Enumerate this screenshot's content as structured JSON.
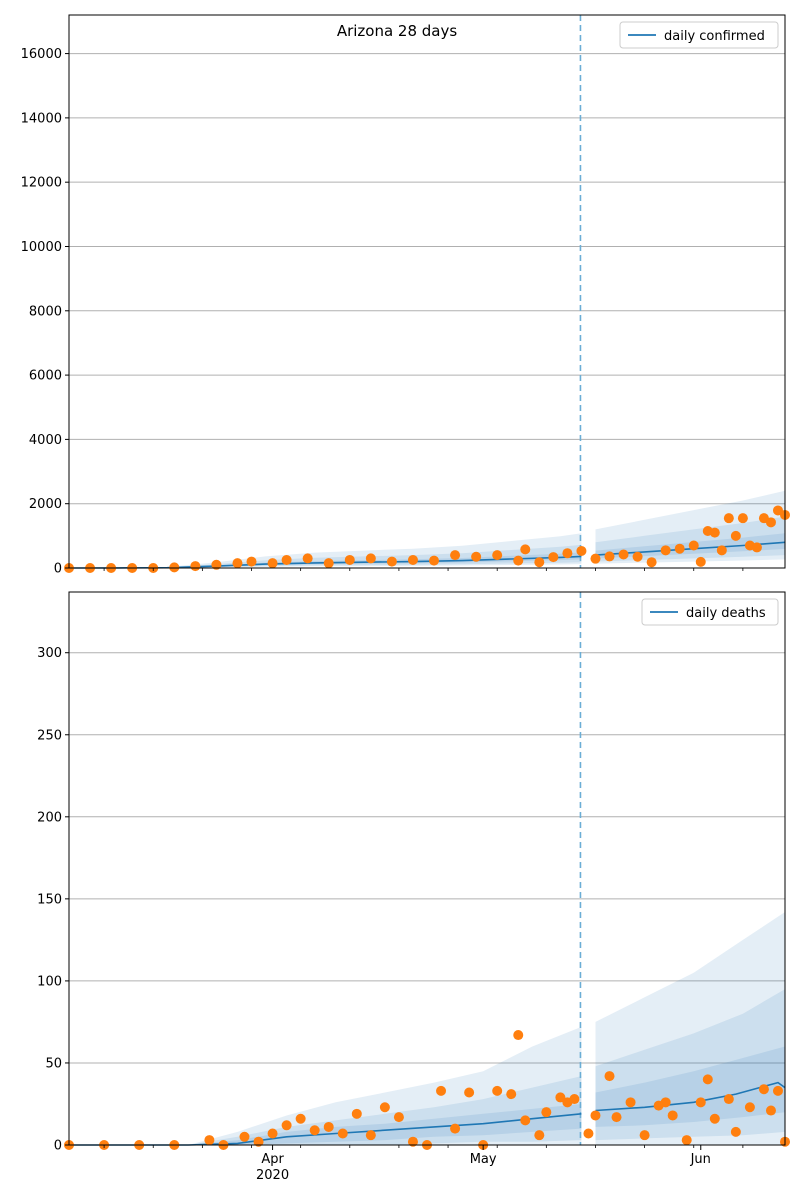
{
  "figure": {
    "title": "Arizona 28 days"
  },
  "colors": {
    "model_line": "#1f77b4",
    "observed_points": "#ff7f0e",
    "band": "#1f77b4",
    "forecast_divider": "#6baed6",
    "grid": "#b0b0b0"
  },
  "chart_data": [
    {
      "type": "line",
      "name": "cases",
      "title": "Arizona 28 days",
      "legend": {
        "label": "daily confirmed",
        "position": "top-right"
      },
      "x_type": "date",
      "xlim": [
        "2020-03-03",
        "2020-06-13"
      ],
      "forecast_start": "2020-05-16",
      "ylim": [
        0,
        17200
      ],
      "yticks": [
        0,
        2000,
        4000,
        6000,
        8000,
        10000,
        12000,
        14000,
        16000
      ],
      "ytick_labels": [
        "0",
        "2000",
        "4000",
        "6000",
        "8000",
        "10000",
        "12000",
        "14000",
        "16000"
      ],
      "grid": true,
      "band_scale": [
        1.35,
        2.0,
        3.0
      ],
      "model": {
        "x": [
          "2020-03-03",
          "2020-03-10",
          "2020-03-17",
          "2020-03-24",
          "2020-03-31",
          "2020-04-07",
          "2020-04-14",
          "2020-04-21",
          "2020-04-28",
          "2020-05-05",
          "2020-05-12",
          "2020-05-15",
          "2020-05-17",
          "2020-05-24",
          "2020-05-31",
          "2020-06-07",
          "2020-06-13"
        ],
        "y": [
          0,
          2,
          10,
          60,
          120,
          160,
          180,
          200,
          230,
          280,
          330,
          360,
          400,
          500,
          600,
          700,
          800
        ]
      },
      "observed": {
        "x": [
          "2020-03-03",
          "2020-03-06",
          "2020-03-09",
          "2020-03-12",
          "2020-03-15",
          "2020-03-18",
          "2020-03-21",
          "2020-03-24",
          "2020-03-27",
          "2020-03-29",
          "2020-04-01",
          "2020-04-03",
          "2020-04-06",
          "2020-04-09",
          "2020-04-12",
          "2020-04-15",
          "2020-04-18",
          "2020-04-21",
          "2020-04-24",
          "2020-04-27",
          "2020-04-30",
          "2020-05-03",
          "2020-05-06",
          "2020-05-07",
          "2020-05-09",
          "2020-05-11",
          "2020-05-13",
          "2020-05-15",
          "2020-05-17",
          "2020-05-19",
          "2020-05-21",
          "2020-05-23",
          "2020-05-25",
          "2020-05-27",
          "2020-05-29",
          "2020-05-31",
          "2020-06-01",
          "2020-06-02",
          "2020-06-03",
          "2020-06-04",
          "2020-06-05",
          "2020-06-06",
          "2020-06-07",
          "2020-06-08",
          "2020-06-09",
          "2020-06-10",
          "2020-06-11",
          "2020-06-12",
          "2020-06-13"
        ],
        "y": [
          0,
          0,
          0,
          0,
          0,
          20,
          60,
          100,
          150,
          200,
          150,
          250,
          300,
          150,
          250,
          300,
          200,
          250,
          230,
          400,
          350,
          400,
          230,
          580,
          180,
          340,
          460,
          530,
          290,
          360,
          420,
          350,
          180,
          550,
          600,
          700,
          190,
          1150,
          1100,
          550,
          1550,
          1000,
          1550,
          700,
          640,
          1550,
          1420,
          1790,
          1650
        ]
      }
    },
    {
      "type": "line",
      "name": "deaths",
      "legend": {
        "label": "daily deaths",
        "position": "top-right"
      },
      "x_type": "date",
      "xlim": [
        "2020-03-03",
        "2020-06-13"
      ],
      "forecast_start": "2020-05-16",
      "ylim": [
        0,
        337
      ],
      "yticks": [
        0,
        50,
        100,
        150,
        200,
        250,
        300
      ],
      "ytick_labels": [
        "0",
        "50",
        "100",
        "150",
        "200",
        "250",
        "300"
      ],
      "xticks": [
        "2020-04-01",
        "2020-05-01",
        "2020-06-01"
      ],
      "xtick_labels": [
        "Apr",
        "May",
        "Jun"
      ],
      "xtick_sublabel": "2020",
      "grid": true,
      "model": {
        "x": [
          "2020-03-03",
          "2020-03-20",
          "2020-03-27",
          "2020-04-03",
          "2020-04-10",
          "2020-04-17",
          "2020-04-24",
          "2020-05-01",
          "2020-05-08",
          "2020-05-15",
          "2020-05-17",
          "2020-05-24",
          "2020-05-31",
          "2020-06-06",
          "2020-06-12",
          "2020-06-13"
        ],
        "y": [
          0,
          0,
          1,
          5,
          7,
          9,
          11,
          13,
          16,
          19,
          21,
          23,
          26,
          31,
          38,
          35
        ]
      },
      "bands": [
        {
          "x": [
            "2020-03-20",
            "2020-03-27",
            "2020-04-03",
            "2020-04-10",
            "2020-04-17",
            "2020-04-24",
            "2020-05-01",
            "2020-05-08",
            "2020-05-15",
            "2020-05-17",
            "2020-05-24",
            "2020-05-31",
            "2020-06-07",
            "2020-06-13"
          ],
          "lower": [
            0,
            0,
            0,
            0,
            0,
            0,
            0,
            0,
            0,
            0,
            0,
            0,
            0,
            0
          ],
          "upper": [
            0,
            8,
            18,
            26,
            32,
            38,
            45,
            60,
            72,
            75,
            90,
            105,
            125,
            142
          ]
        },
        {
          "x": [
            "2020-03-20",
            "2020-03-27",
            "2020-04-03",
            "2020-04-10",
            "2020-04-17",
            "2020-04-24",
            "2020-05-01",
            "2020-05-08",
            "2020-05-15",
            "2020-05-17",
            "2020-05-24",
            "2020-05-31",
            "2020-06-07",
            "2020-06-13"
          ],
          "lower": [
            0,
            0,
            0,
            0,
            0,
            1,
            2,
            2,
            3,
            3,
            4,
            5,
            6,
            8
          ],
          "upper": [
            0,
            5,
            11,
            15,
            19,
            23,
            28,
            35,
            42,
            48,
            58,
            68,
            80,
            95
          ]
        },
        {
          "x": [
            "2020-03-20",
            "2020-03-27",
            "2020-04-03",
            "2020-04-10",
            "2020-04-17",
            "2020-04-24",
            "2020-05-01",
            "2020-05-08",
            "2020-05-15",
            "2020-05-17",
            "2020-05-24",
            "2020-05-31",
            "2020-06-07",
            "2020-06-13"
          ],
          "lower": [
            0,
            0,
            1,
            2,
            3,
            5,
            6,
            8,
            10,
            11,
            12,
            14,
            17,
            20
          ],
          "upper": [
            0,
            3,
            8,
            11,
            13,
            16,
            19,
            22,
            25,
            32,
            38,
            45,
            53,
            60
          ]
        }
      ],
      "observed": {
        "x": [
          "2020-03-03",
          "2020-03-08",
          "2020-03-13",
          "2020-03-18",
          "2020-03-23",
          "2020-03-25",
          "2020-03-28",
          "2020-03-30",
          "2020-04-01",
          "2020-04-03",
          "2020-04-05",
          "2020-04-07",
          "2020-04-09",
          "2020-04-11",
          "2020-04-13",
          "2020-04-15",
          "2020-04-17",
          "2020-04-19",
          "2020-04-21",
          "2020-04-23",
          "2020-04-25",
          "2020-04-27",
          "2020-04-29",
          "2020-05-01",
          "2020-05-03",
          "2020-05-05",
          "2020-05-06",
          "2020-05-07",
          "2020-05-09",
          "2020-05-10",
          "2020-05-12",
          "2020-05-13",
          "2020-05-14",
          "2020-05-16",
          "2020-05-17",
          "2020-05-19",
          "2020-05-20",
          "2020-05-22",
          "2020-05-24",
          "2020-05-26",
          "2020-05-27",
          "2020-05-28",
          "2020-05-30",
          "2020-06-01",
          "2020-06-02",
          "2020-06-03",
          "2020-06-05",
          "2020-06-06",
          "2020-06-08",
          "2020-06-10",
          "2020-06-11",
          "2020-06-12",
          "2020-06-13"
        ],
        "y": [
          0,
          0,
          0,
          0,
          3,
          0,
          5,
          2,
          7,
          12,
          16,
          9,
          11,
          7,
          19,
          6,
          23,
          17,
          2,
          0,
          33,
          10,
          32,
          0,
          33,
          31,
          67,
          15,
          6,
          20,
          29,
          26,
          28,
          7,
          18,
          42,
          17,
          26,
          6,
          24,
          26,
          18,
          3,
          26,
          40,
          16,
          28,
          8,
          23,
          34,
          21,
          33,
          2
        ]
      }
    }
  ]
}
